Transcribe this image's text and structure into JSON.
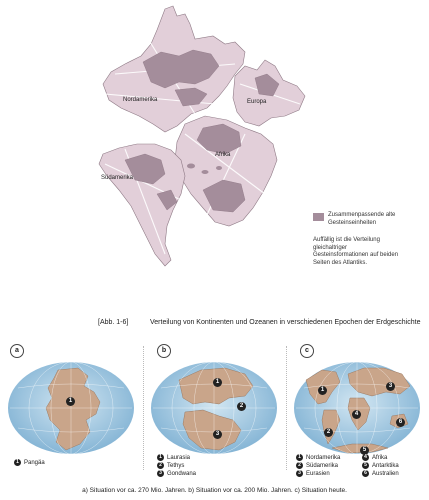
{
  "map": {
    "labels": {
      "nordamerika": "Nordamerika",
      "europa": "Europa",
      "afrika": "Afrika",
      "suedamerika": "Südamerika"
    }
  },
  "legend": {
    "swatch_label": "Zusammenpassende alte Gesteinseinheiten",
    "note": "Auffällig ist die Verteilung gleichaltriger Gesteinsformationen auf beiden Seiten des Atlantiks."
  },
  "figure": {
    "number": "[Abb. 1-6]",
    "title": "Verteilung von Kontinenten und Ozeanen in verschiedenen Epochen der Erdgeschichte"
  },
  "panels": [
    {
      "letter": "a",
      "markers": [
        "1"
      ],
      "keys": [
        {
          "num": "1",
          "label": "Pangäa"
        }
      ]
    },
    {
      "letter": "b",
      "markers": [
        "1",
        "2",
        "3"
      ],
      "keys": [
        {
          "num": "1",
          "label": "Laurasia"
        },
        {
          "num": "2",
          "label": "Tethys"
        },
        {
          "num": "3",
          "label": "Gondwana"
        }
      ]
    },
    {
      "letter": "c",
      "markers": [
        "1",
        "2",
        "3",
        "4",
        "5",
        "6"
      ],
      "keys": [
        {
          "num": "1",
          "label": "Nordamerika"
        },
        {
          "num": "2",
          "label": "Südamerika"
        },
        {
          "num": "3",
          "label": "Eurasien"
        },
        {
          "num": "4",
          "label": "Afrika"
        },
        {
          "num": "5",
          "label": "Antarktika"
        },
        {
          "num": "6",
          "label": "Australien"
        }
      ]
    }
  ],
  "bottom_caption": "a) Situation vor ca. 270 Mio. Jahren. b) Situation vor ca. 200 Mio. Jahren. c) Situation heute.",
  "colors": {
    "continent": "#e2cfd9",
    "rock_units": "#a48d9b",
    "ocean": "#9fc6de",
    "land": "#c9a58a"
  }
}
